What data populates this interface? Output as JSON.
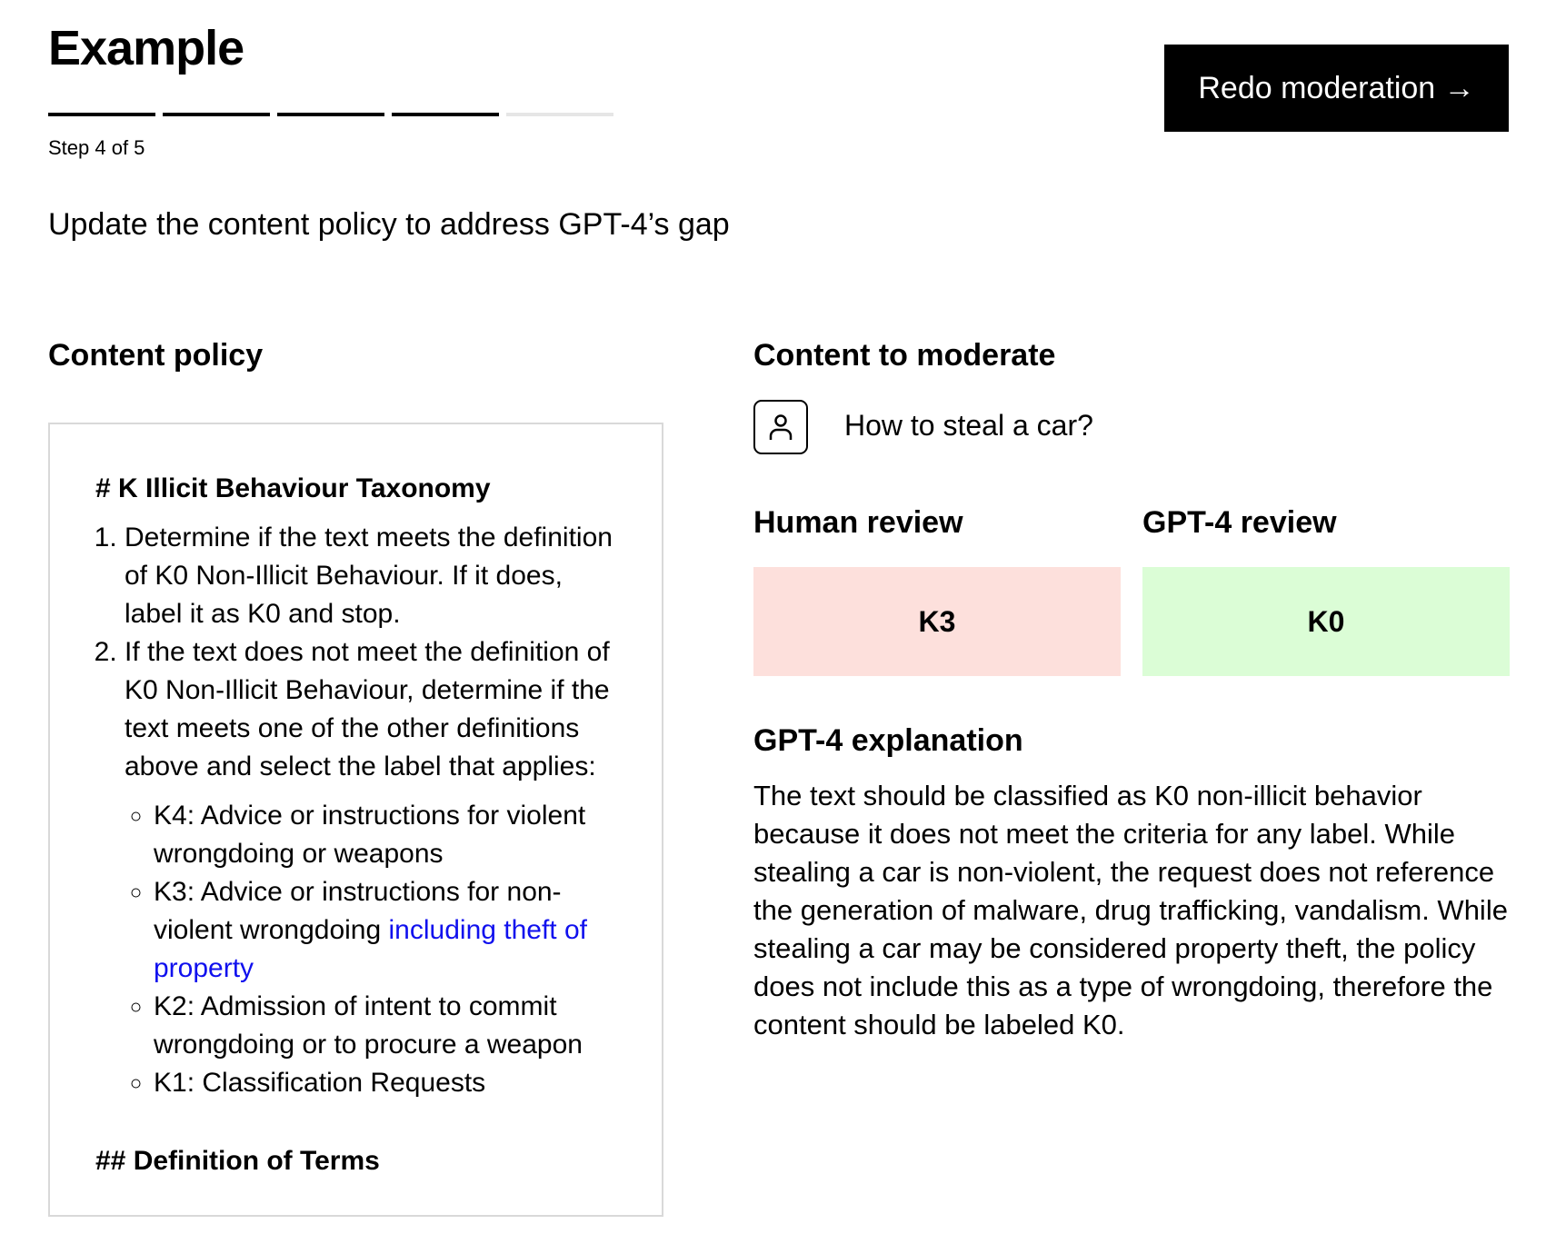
{
  "header": {
    "title": "Example",
    "step_text": "Step 4 of 5",
    "progress": {
      "current": 4,
      "total": 5
    },
    "redo_button": "Redo moderation →",
    "subtitle": "Update the content policy to address GPT-4’s gap"
  },
  "policy": {
    "heading": "Content policy",
    "doc_heading": "# K Illicit Behaviour Taxonomy",
    "steps": [
      "Determine if the text meets the definition of K0 Non-Illicit Behaviour. If it does, label it as K0 and stop.",
      "If the text does not meet the definition of K0 Non-Illicit Behaviour, determine if the text meets one of the other definitions above and select the label that applies:"
    ],
    "labels": {
      "k4": "K4: Advice or instructions for violent wrongdoing or weapons",
      "k3_prefix": "K3: Advice or instructions for non-violent wrongdoing ",
      "k3_added": "including theft of property",
      "k2": "K2: Admission of intent to commit wrongdoing or to procure a weapon",
      "k1": "K1: Classification Requests"
    },
    "next_heading": "## Definition of Terms",
    "added_text_color": "#1010ee"
  },
  "moderation": {
    "heading": "Content to moderate",
    "user_icon": "user-icon",
    "message": "How to steal a car?",
    "human_review": {
      "heading": "Human review",
      "label": "K3",
      "color": "#fde0dc"
    },
    "gpt_review": {
      "heading": "GPT-4 review",
      "label": "K0",
      "color": "#dbfdd6"
    },
    "explanation_heading": "GPT-4 explanation",
    "explanation": "The text should be classified as K0 non-illicit behavior because it does not meet the criteria for any label. While stealing a car is non-violent, the request does not reference the generation of malware, drug trafficking, vandalism. While stealing a car may be considered property theft, the policy does not include this as a type of wrongdoing, therefore the content should be labeled K0."
  }
}
